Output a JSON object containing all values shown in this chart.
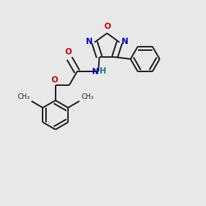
{
  "bg_color": "#e8e8e8",
  "bond_color": "#1a1a1a",
  "N_color": "#0000cc",
  "O_color": "#cc0000",
  "H_color": "#008080",
  "line_width": 1.5,
  "font_size": 8.5,
  "fig_size": [
    3.0,
    3.0
  ],
  "dpi": 100,
  "xlim": [
    0,
    10
  ],
  "ylim": [
    0,
    10
  ],
  "dbo": 0.18
}
